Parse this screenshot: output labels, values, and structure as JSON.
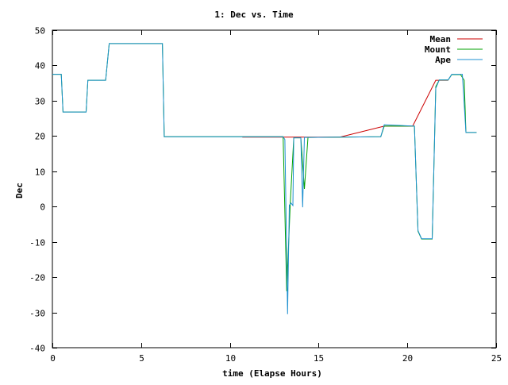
{
  "chart_data": {
    "type": "line",
    "title": "1: Dec vs. Time",
    "xlabel": "time (Elapse Hours)",
    "ylabel": "Dec",
    "xlim": [
      0,
      25
    ],
    "ylim": [
      -40,
      50
    ],
    "xticks": [
      0,
      5,
      10,
      15,
      20,
      25
    ],
    "yticks": [
      -40,
      -30,
      -20,
      -10,
      0,
      10,
      20,
      30,
      40,
      50
    ],
    "grid": false,
    "legend_position": "top-right",
    "series": [
      {
        "name": "Mean",
        "color": "#cc0000",
        "points": [
          [
            10.7,
            19.7
          ],
          [
            13.1,
            19.7
          ],
          [
            13.5,
            19.7
          ],
          [
            16.2,
            19.7
          ],
          [
            18.7,
            22.8
          ],
          [
            20.3,
            22.8
          ],
          [
            21.6,
            35.8
          ],
          [
            22.3,
            35.8
          ]
        ]
      },
      {
        "name": "Mount",
        "color": "#00a000",
        "points": [
          [
            0,
            37.5
          ],
          [
            0.5,
            37.5
          ],
          [
            0.6,
            26.8
          ],
          [
            1.9,
            26.8
          ],
          [
            2.0,
            35.8
          ],
          [
            3.0,
            35.8
          ],
          [
            3.2,
            46.2
          ],
          [
            6.2,
            46.2
          ],
          [
            6.3,
            19.8
          ],
          [
            13.0,
            19.8
          ],
          [
            13.2,
            -24.0
          ],
          [
            13.4,
            0.5
          ],
          [
            13.6,
            19.5
          ],
          [
            14.0,
            19.5
          ],
          [
            14.2,
            5.0
          ],
          [
            14.4,
            19.6
          ],
          [
            18.5,
            19.8
          ],
          [
            18.7,
            22.8
          ],
          [
            20.4,
            22.8
          ],
          [
            20.6,
            -7.0
          ],
          [
            20.8,
            -9.2
          ],
          [
            21.4,
            -9.2
          ],
          [
            21.6,
            34.0
          ],
          [
            21.8,
            35.9
          ],
          [
            22.3,
            35.9
          ],
          [
            22.5,
            37.4
          ],
          [
            23.0,
            37.4
          ],
          [
            23.2,
            35.8
          ],
          [
            23.3,
            21.0
          ],
          [
            23.9,
            21.0
          ]
        ]
      },
      {
        "name": "Ape",
        "color": "#1e90d0",
        "points": [
          [
            0,
            37.5
          ],
          [
            0.5,
            37.5
          ],
          [
            0.6,
            26.8
          ],
          [
            1.9,
            26.8
          ],
          [
            2.0,
            35.8
          ],
          [
            3.0,
            35.8
          ],
          [
            3.2,
            46.2
          ],
          [
            6.2,
            46.2
          ],
          [
            6.3,
            19.8
          ],
          [
            13.0,
            19.8
          ],
          [
            13.1,
            19.0
          ],
          [
            13.25,
            -30.5
          ],
          [
            13.35,
            0.4
          ],
          [
            13.45,
            1.0
          ],
          [
            13.55,
            0.3
          ],
          [
            13.6,
            19.5
          ],
          [
            14.0,
            19.5
          ],
          [
            14.1,
            -0.2
          ],
          [
            14.2,
            19.6
          ],
          [
            14.4,
            19.6
          ],
          [
            18.5,
            19.8
          ],
          [
            18.7,
            23.2
          ],
          [
            20.4,
            22.8
          ],
          [
            20.6,
            -6.8
          ],
          [
            20.8,
            -9.1
          ],
          [
            21.4,
            -9.1
          ],
          [
            21.6,
            33.5
          ],
          [
            21.8,
            35.9
          ],
          [
            22.3,
            35.9
          ],
          [
            22.5,
            37.5
          ],
          [
            23.1,
            37.5
          ],
          [
            23.3,
            21.0
          ],
          [
            23.9,
            21.0
          ]
        ]
      }
    ]
  }
}
